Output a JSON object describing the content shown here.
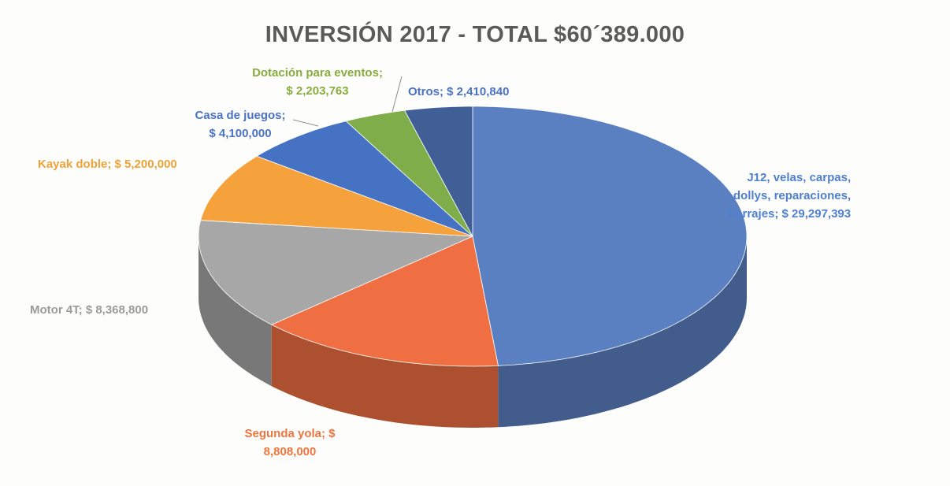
{
  "chart_data": {
    "type": "pie",
    "title": "INVERSIÓN 2017 - TOTAL $60´389.000",
    "slices": [
      {
        "name": "J12, velas, carpas, dollys, reparaciones, herrajes",
        "value": 29297393,
        "color": "#5b80c2",
        "label_lines": [
          "J12, velas, carpas,",
          "dollys, reparaciones,",
          "herrajes;  $ 29,297,393"
        ]
      },
      {
        "name": "Segunda yola",
        "value": 8808000,
        "color": "#f06f42",
        "label_lines": [
          "Segunda yola;  $",
          "8,808,000"
        ]
      },
      {
        "name": "Motor 4T",
        "value": 8368800,
        "color": "#a7a7a7",
        "label_lines": [
          "Motor 4T;  $ 8,368,800"
        ]
      },
      {
        "name": "Kayak doble",
        "value": 5200000,
        "color": "#f6a23c",
        "label_lines": [
          "Kayak doble;  $ 5,200,000"
        ]
      },
      {
        "name": "Casa de juegos",
        "value": 4100000,
        "color": "#4672c4",
        "label_lines": [
          "Casa de juegos;",
          "$ 4,100,000"
        ]
      },
      {
        "name": "Dotación para eventos",
        "value": 2203763,
        "color": "#7ead4a",
        "label_lines": [
          "Dotación para eventos;",
          "$ 2,203,763"
        ]
      },
      {
        "name": "Otros",
        "value": 2410840,
        "color": "#3f5f96",
        "label_lines": [
          "Otros;  $ 2,410,840"
        ]
      }
    ],
    "legend": "none",
    "style": "3d-pie"
  }
}
